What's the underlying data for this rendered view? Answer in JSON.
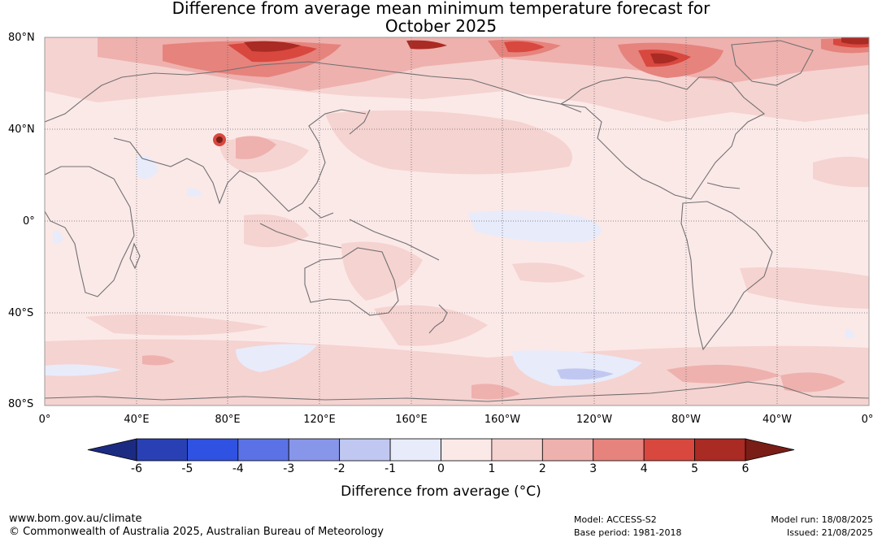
{
  "title": {
    "line1": "Difference from average mean minimum temperature forecast for",
    "line2": "October 2025"
  },
  "map": {
    "lat_labels": [
      "80°N",
      "40°N",
      "0°",
      "40°S",
      "80°S"
    ],
    "lon_labels": [
      "0°",
      "40°E",
      "80°E",
      "120°E",
      "160°E",
      "160°W",
      "120°W",
      "80°W",
      "40°W",
      "0°"
    ],
    "colors": {
      "base": "#fbe9e8",
      "light_red": "#f5d3d1",
      "mid_red": "#eeb1ae",
      "red": "#e6837d",
      "strong_red": "#d8483f",
      "dark_red": "#aa2a24",
      "darkest_red": "#7a1d16",
      "light_blue": "#e8ebfa",
      "mid_blue": "#c0c8f2",
      "coastline": "#707070",
      "grid": "#666666"
    }
  },
  "colorbar": {
    "ticks": [
      "-6",
      "-5",
      "-4",
      "-3",
      "-2",
      "-1",
      "0",
      "1",
      "2",
      "3",
      "4",
      "5",
      "6"
    ],
    "colors": [
      "#1c2b82",
      "#2940b5",
      "#3052e2",
      "#5a72e5",
      "#8896ea",
      "#c0c8f2",
      "#e8ebfa",
      "#fbe9e8",
      "#f5d3d1",
      "#eeb1ae",
      "#e6837d",
      "#d8483f",
      "#aa2a24",
      "#7a1d16"
    ],
    "label": "Difference from average (°C)"
  },
  "footer": {
    "url": "www.bom.gov.au/climate",
    "copyright": "© Commonwealth of Australia 2025, Australian Bureau of Meteorology",
    "model": "Model: ACCESS-S2",
    "base_period": "Base period: 1981-2018",
    "model_run": "Model run: 18/08/2025",
    "issued": "Issued: 21/08/2025"
  }
}
